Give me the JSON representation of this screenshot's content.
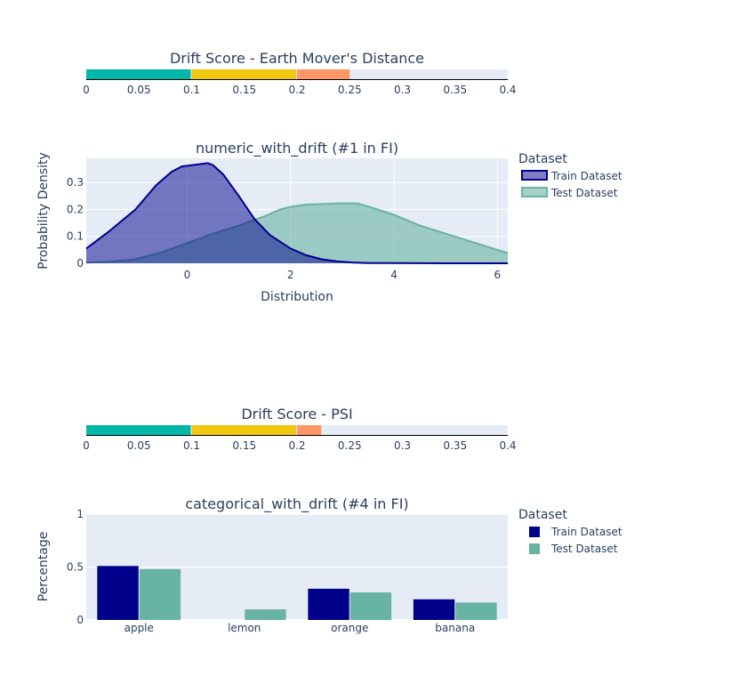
{
  "chart_data": [
    {
      "type": "gauge-bar",
      "title": "Drift Score - Earth Mover's Distance",
      "value": 0.25,
      "range": [
        0,
        0.4
      ],
      "ticks": [
        "0",
        "0.05",
        "0.1",
        "0.15",
        "0.2",
        "0.25",
        "0.3",
        "0.35",
        "0.4"
      ],
      "tick_values": [
        0,
        0.05,
        0.1,
        0.15,
        0.2,
        0.25,
        0.3,
        0.35,
        0.4
      ],
      "bands": [
        {
          "from": 0,
          "to": 0.1,
          "color": "#01B8AA"
        },
        {
          "from": 0.1,
          "to": 0.2,
          "color": "#F2C80F"
        },
        {
          "from": 0.2,
          "to": 0.25,
          "color": "#FE9666"
        }
      ]
    },
    {
      "type": "area",
      "title": "numeric_with_drift (#1 in FI)",
      "xlabel": "Distribution",
      "ylabel": "Probability Density",
      "xlim": [
        -1.95,
        6.2
      ],
      "ylim": [
        0,
        0.39
      ],
      "x_ticks": [
        "0",
        "2",
        "4",
        "6"
      ],
      "x_tick_values": [
        0,
        2,
        4,
        6
      ],
      "y_ticks": [
        "0",
        "0.1",
        "0.2",
        "0.3"
      ],
      "y_tick_values": [
        0,
        0.1,
        0.2,
        0.3
      ],
      "legend_title": "Dataset",
      "series": [
        {
          "name": "Train Dataset",
          "color": "#00008b",
          "fill": "rgba(0,0,139,0.5)",
          "x": [
            -1.95,
            -1.5,
            -1.0,
            -0.6,
            -0.3,
            -0.1,
            0.1,
            0.3,
            0.4,
            0.5,
            0.7,
            1.0,
            1.3,
            1.6,
            2.0,
            2.3,
            2.6,
            2.9,
            3.2,
            3.5,
            4.0,
            4.5,
            5.0,
            5.5,
            6.2
          ],
          "y": [
            0.055,
            0.12,
            0.2,
            0.29,
            0.34,
            0.36,
            0.365,
            0.37,
            0.372,
            0.365,
            0.33,
            0.25,
            0.165,
            0.105,
            0.055,
            0.03,
            0.015,
            0.007,
            0.003,
            0.001,
            0.0005,
            0.0002,
            0.0001,
            0.0,
            0.0
          ]
        },
        {
          "name": "Test Dataset",
          "color": "#69b3a2",
          "fill": "rgba(105,179,162,0.6)",
          "x": [
            -1.95,
            -1.5,
            -1.0,
            -0.5,
            0.0,
            0.5,
            1.0,
            1.5,
            1.8,
            2.0,
            2.3,
            2.6,
            3.0,
            3.3,
            3.6,
            4.0,
            4.5,
            5.0,
            5.5,
            6.0,
            6.2
          ],
          "y": [
            0.002,
            0.006,
            0.015,
            0.04,
            0.075,
            0.11,
            0.14,
            0.175,
            0.2,
            0.21,
            0.218,
            0.22,
            0.223,
            0.222,
            0.205,
            0.18,
            0.14,
            0.11,
            0.08,
            0.05,
            0.038
          ]
        }
      ]
    },
    {
      "type": "gauge-bar",
      "title": "Drift Score - PSI",
      "value": 0.223,
      "range": [
        0,
        0.4
      ],
      "ticks": [
        "0",
        "0.05",
        "0.1",
        "0.15",
        "0.2",
        "0.25",
        "0.3",
        "0.35",
        "0.4"
      ],
      "tick_values": [
        0,
        0.05,
        0.1,
        0.15,
        0.2,
        0.25,
        0.3,
        0.35,
        0.4
      ],
      "bands": [
        {
          "from": 0,
          "to": 0.1,
          "color": "#01B8AA"
        },
        {
          "from": 0.1,
          "to": 0.2,
          "color": "#F2C80F"
        },
        {
          "from": 0.2,
          "to": 0.223,
          "color": "#FE9666"
        }
      ]
    },
    {
      "type": "bar",
      "title": "categorical_with_drift (#4 in FI)",
      "xlabel": "",
      "ylabel": "Percentage",
      "ylim": [
        0,
        1
      ],
      "y_ticks": [
        "0",
        "0.5",
        "1"
      ],
      "y_tick_values": [
        0,
        0.5,
        1
      ],
      "categories": [
        "apple",
        "lemon",
        "orange",
        "banana"
      ],
      "legend_title": "Dataset",
      "series": [
        {
          "name": "Train Dataset",
          "color": "#00008b",
          "values": [
            0.51,
            0.0,
            0.295,
            0.195
          ]
        },
        {
          "name": "Test Dataset",
          "color": "#69b3a2",
          "values": [
            0.48,
            0.1,
            0.26,
            0.165
          ]
        }
      ]
    }
  ]
}
